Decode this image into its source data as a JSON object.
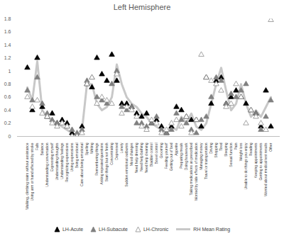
{
  "chart_data": {
    "type": "scatter",
    "title": "Left Hemisphere",
    "categories": [
      "Walking, climbing stairs without assistance",
      "Using arm or hand affected by stroke",
      "Falls",
      "Balance",
      "Understanding conversation",
      "Expressing myself",
      "Understanding thoughts",
      "Understanding feelings",
      "Recognizing expressions",
      "Using expressions",
      "Being emotional",
      "Care about being emotional",
      "Spelling",
      "Writing",
      "Remembering things",
      "Asking repeated questions",
      "Start things but not finish",
      "Concentrating",
      "Depressed",
      "Lonely",
      "Sudden emotional outbursts",
      "Mood changes",
      "Need help dressing",
      "Need help bathing",
      "Need help cleaning",
      "Bladder control",
      "Bowel control",
      "Grooming",
      "Feeding yourself",
      "Getting out of bed",
      "Appetite",
      "Preparing meals",
      "Doing housework",
      "Taking medications as prescribed",
      "Worried by side effects of medication",
      "Managing money",
      "Travel or transportation",
      "Driving",
      "Shopping",
      "Tired",
      "Sleeping",
      "Sexual function",
      "Pain",
      "Weight loss",
      "Unable to do things you enjoy",
      "Reading",
      "Keeping appointments",
      "Getting to appointments",
      "Worried about medical test results",
      "Other"
    ],
    "series": [
      {
        "name": "LH-Acute",
        "type": "scatter",
        "marker": "triangle",
        "color": "#000000",
        "values": [
          1.05,
          0.4,
          1.2,
          0.45,
          0.3,
          0.35,
          0.2,
          0.25,
          0.2,
          0.05,
          0,
          0.15,
          0.8,
          0.75,
          1.2,
          0.95,
          0.85,
          1.25,
          0.85,
          0.5,
          0.5,
          0.45,
          0.35,
          0.3,
          0.35,
          0.2,
          0.25,
          0.15,
          0.05,
          0.15,
          0.45,
          0.4,
          0.3,
          0.25,
          0.25,
          0.15,
          0.9,
          0.5,
          0.85,
          0.9,
          0.5,
          0.6,
          0.7,
          0.6,
          0.5,
          0.4,
          0.35,
          0.15,
          0.7,
          0.15
        ]
      },
      {
        "name": "LH-Subacute",
        "type": "scatter",
        "marker": "triangle",
        "color": "#808080",
        "values": [
          0.7,
          0.55,
          0.9,
          0.5,
          0.35,
          0.25,
          0.2,
          0.2,
          0.15,
          0.1,
          0.05,
          0.1,
          0.85,
          0.9,
          0.6,
          0.55,
          0.5,
          0.8,
          1.0,
          0.45,
          0.4,
          0.45,
          0.2,
          0.2,
          0.15,
          0.2,
          0.3,
          0.1,
          0.05,
          0.1,
          0.35,
          0.25,
          0.2,
          0.1,
          0.05,
          0.25,
          0.3,
          0.6,
          0.9,
          0.85,
          0.5,
          0.65,
          0.6,
          0.7,
          0.8,
          0.4,
          0.35,
          0.1,
          0.3,
          0.55
        ]
      },
      {
        "name": "LH-Chronic",
        "type": "scatter",
        "marker": "triangle-open",
        "color": "#8c8c8c",
        "values": [
          0.6,
          0.45,
          0.55,
          0.35,
          0.3,
          0.2,
          0.15,
          0.2,
          0.15,
          0,
          0,
          0.05,
          0.8,
          0.9,
          0.5,
          0.6,
          0.55,
          0.5,
          0.95,
          0.35,
          0.45,
          0.4,
          0.3,
          0.15,
          0.1,
          0.25,
          0.2,
          0.05,
          0.1,
          0.2,
          0.25,
          0.15,
          0.3,
          0.05,
          0.25,
          1.25,
          0.9,
          0.85,
          0.8,
          0.7,
          0.45,
          0.5,
          0.8,
          0.6,
          0.2,
          0.4,
          0.3,
          0.2,
          0.1,
          1.78
        ]
      },
      {
        "name": "RH Mean Rating",
        "type": "line",
        "line_style": "solid",
        "color": "#c8c8c8",
        "values": [
          0.75,
          0.55,
          1.15,
          0.4,
          0.3,
          0.25,
          0.2,
          0.15,
          0.1,
          0.05,
          0,
          0.1,
          0.8,
          0.8,
          0.5,
          0.4,
          0.45,
          0.6,
          1.1,
          0.8,
          0.6,
          0.5,
          0.45,
          0.35,
          0.3,
          0.2,
          0.15,
          0.1,
          0.05,
          0.15,
          0.1,
          0.3,
          0.2,
          0.35,
          0.15,
          0.1,
          0.2,
          0.5,
          0.8,
          1.05,
          0.7,
          0.4,
          0.5,
          0.8,
          0.5,
          0.3,
          0.4,
          0.3,
          0.45,
          0.6
        ]
      }
    ],
    "ylim": [
      0,
      1.8
    ],
    "yticks": [
      0,
      0.2,
      0.4,
      0.6,
      0.8,
      1,
      1.2,
      1.4,
      1.6,
      1.8
    ],
    "grid": false,
    "legend": "bottom"
  }
}
